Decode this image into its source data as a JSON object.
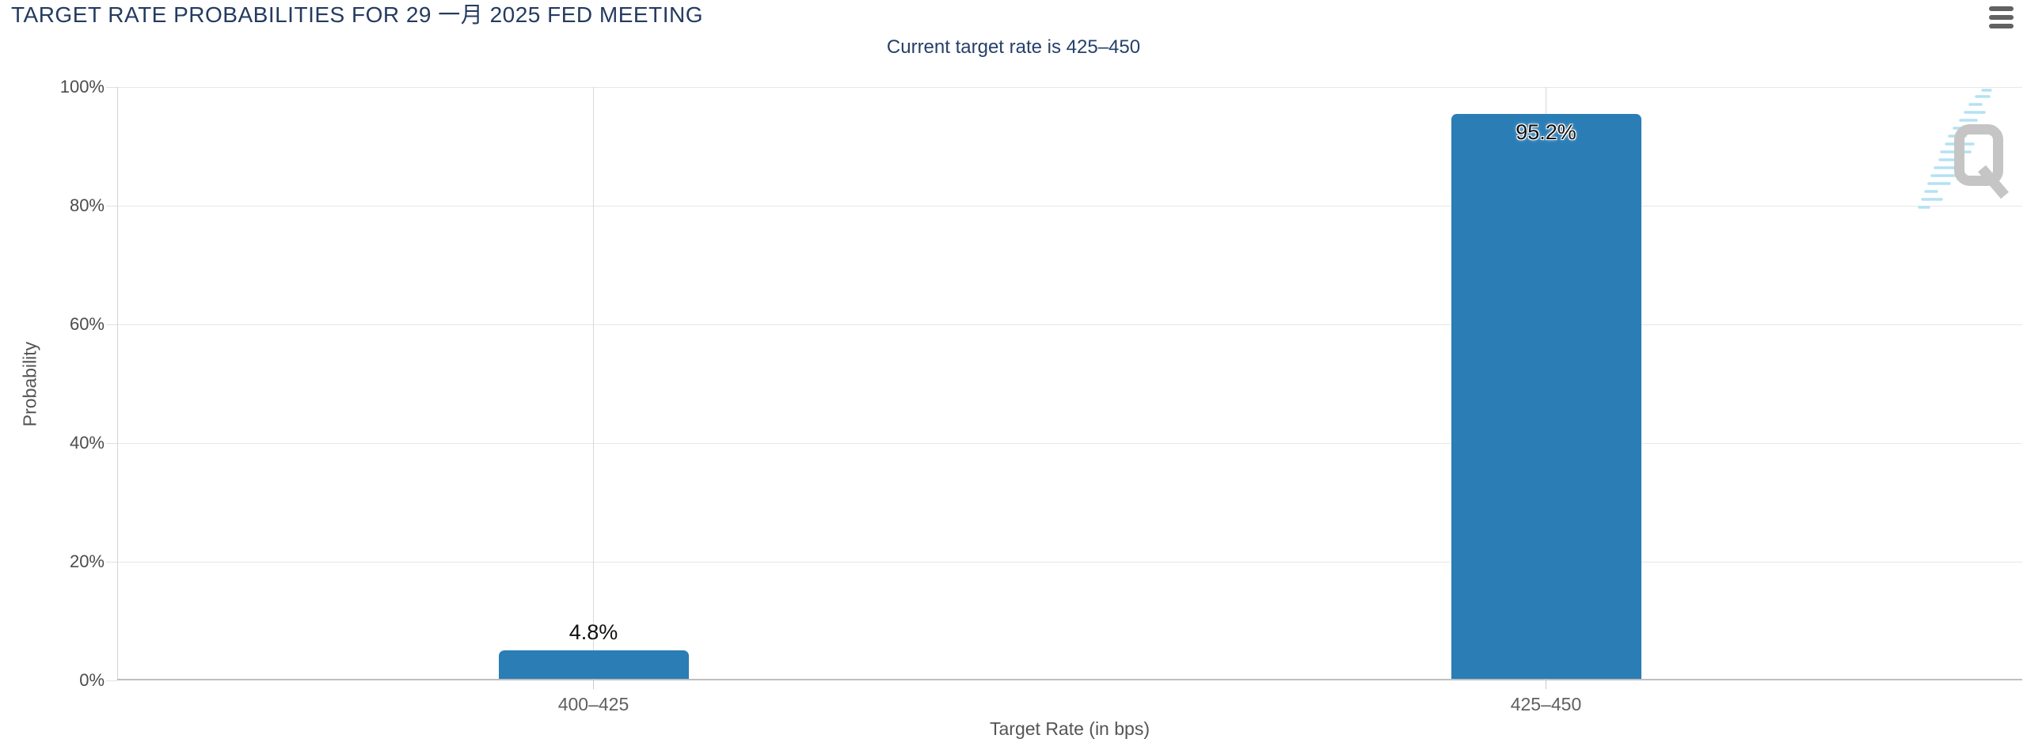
{
  "header": {
    "title": "TARGET RATE PROBABILITIES FOR 29 一月 2025 FED MEETING",
    "menu_icon": "hamburger-menu"
  },
  "chart_data": {
    "type": "bar",
    "title": "TARGET RATE PROBABILITIES FOR 29 一月 2025 FED MEETING",
    "subtitle": "Current target rate is 425–450",
    "categories": [
      "400–425",
      "425–450"
    ],
    "values": [
      4.8,
      95.2
    ],
    "data_labels": [
      "4.8%",
      "95.2%"
    ],
    "xlabel": "Target Rate (in bps)",
    "ylabel": "Probability",
    "ylim": [
      0,
      100
    ],
    "ytick_labels": [
      "0%",
      "20%",
      "40%",
      "60%",
      "80%",
      "100%"
    ],
    "grid": true,
    "legend": false,
    "bar_color": "#2b7db5"
  },
  "colors": {
    "title_text": "#243b60",
    "bar": "#2b7db5",
    "y_tick_text": "#4c4c4c",
    "x_tick_text": "#5f5f5f",
    "axis_title_text": "#555555",
    "grid_horizontal": "#e7e7e7",
    "grid_vertical": "#d8d8d8",
    "axis_line": "#bfbfbf",
    "menu_icon": "#626262",
    "watermark_q": "#c5c5c5",
    "watermark_dashes": "#b3e2f3"
  },
  "watermark": {
    "letter": "Q"
  }
}
